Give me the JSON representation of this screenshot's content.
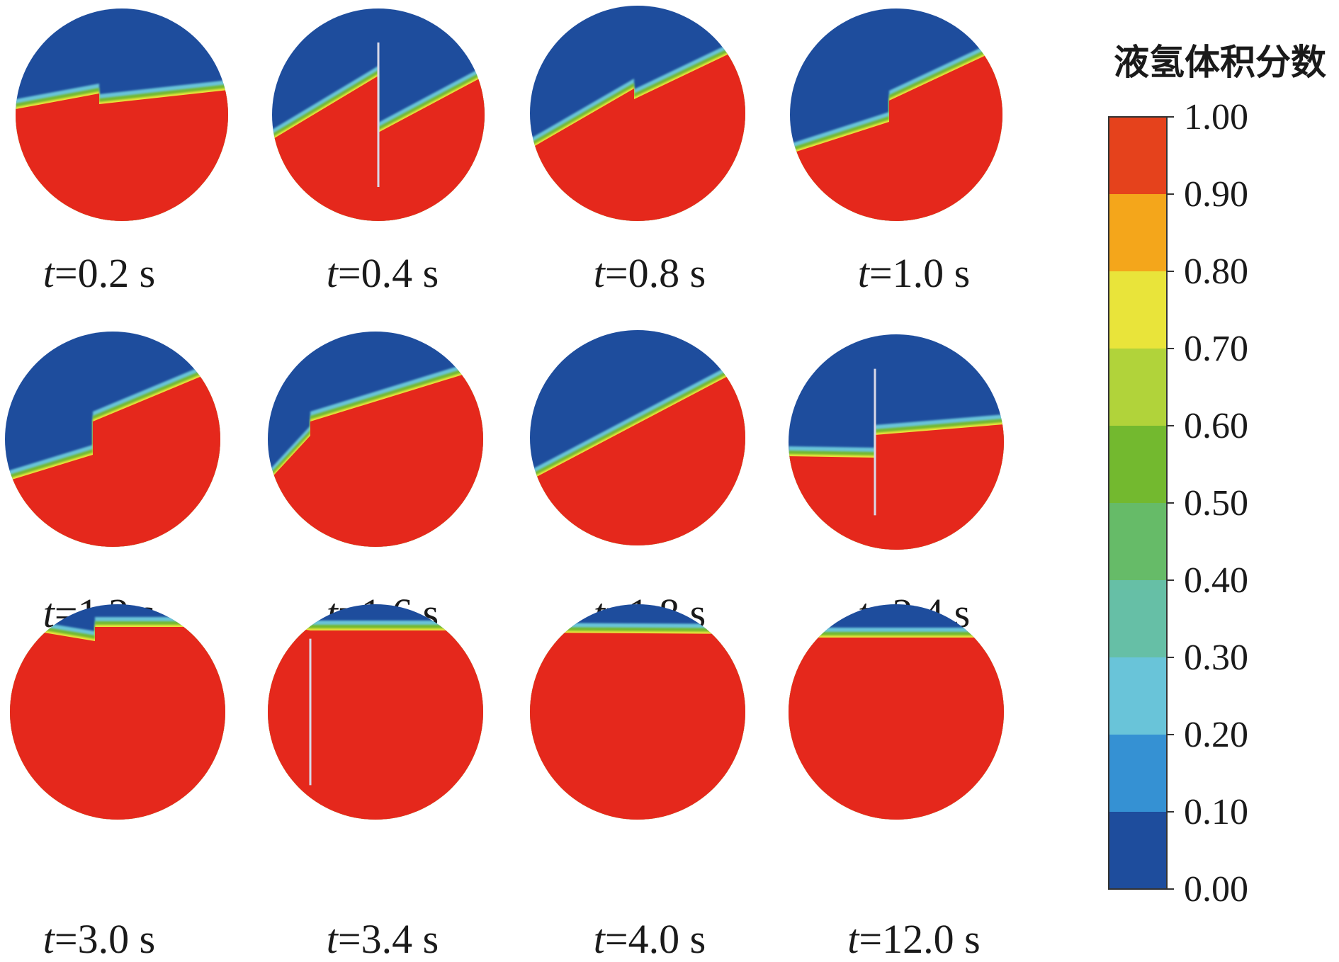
{
  "legend": {
    "title": "液氢体积分数",
    "ticks": [
      "1.00",
      "0.90",
      "0.80",
      "0.70",
      "0.60",
      "0.50",
      "0.40",
      "0.30",
      "0.20",
      "0.10",
      "0.00"
    ],
    "band_colors": [
      "#e5421c",
      "#f4a61b",
      "#e9e43a",
      "#b1d33a",
      "#73b92f",
      "#66bb68",
      "#66bfa6",
      "#69c4d9",
      "#3591d3",
      "#1e4d9d"
    ]
  },
  "colors": {
    "gas": "#1e4d9d",
    "liquid": "#e5281c",
    "interface": [
      "#e9e43a",
      "#73b92f",
      "#69c4d9"
    ]
  },
  "panels": [
    {
      "time_var": "t",
      "time_value": "=0.2 s",
      "baffle": "step"
    },
    {
      "time_var": "t",
      "time_value": "=0.4 s",
      "baffle": "line"
    },
    {
      "time_var": "t",
      "time_value": "=0.8 s",
      "baffle": "step"
    },
    {
      "time_var": "t",
      "time_value": "=1.0 s",
      "baffle": "step"
    },
    {
      "time_var": "t",
      "time_value": "=1.2 s",
      "baffle": "step"
    },
    {
      "time_var": "t",
      "time_value": "=1.6 s",
      "baffle": "step"
    },
    {
      "time_var": "t",
      "time_value": "=1.8 s",
      "baffle": "line"
    },
    {
      "time_var": "t",
      "time_value": "=2.4 s",
      "baffle": "line"
    },
    {
      "time_var": "t",
      "time_value": "=3.0 s",
      "baffle": "step"
    },
    {
      "time_var": "t",
      "time_value": "=3.4 s",
      "baffle": "line"
    },
    {
      "time_var": "t",
      "time_value": "=4.0 s",
      "baffle": "none"
    },
    {
      "time_var": "t",
      "time_value": "=12.0 s",
      "baffle": "none"
    }
  ]
}
